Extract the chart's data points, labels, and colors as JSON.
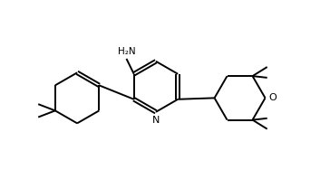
{
  "bg_color": "#ffffff",
  "line_color": "#000000",
  "line_width": 1.4,
  "font_size": 7.5,
  "figsize": [
    3.64,
    1.88
  ],
  "dpi": 100,
  "xlim": [
    0,
    10
  ],
  "ylim": [
    0,
    5.2
  ]
}
